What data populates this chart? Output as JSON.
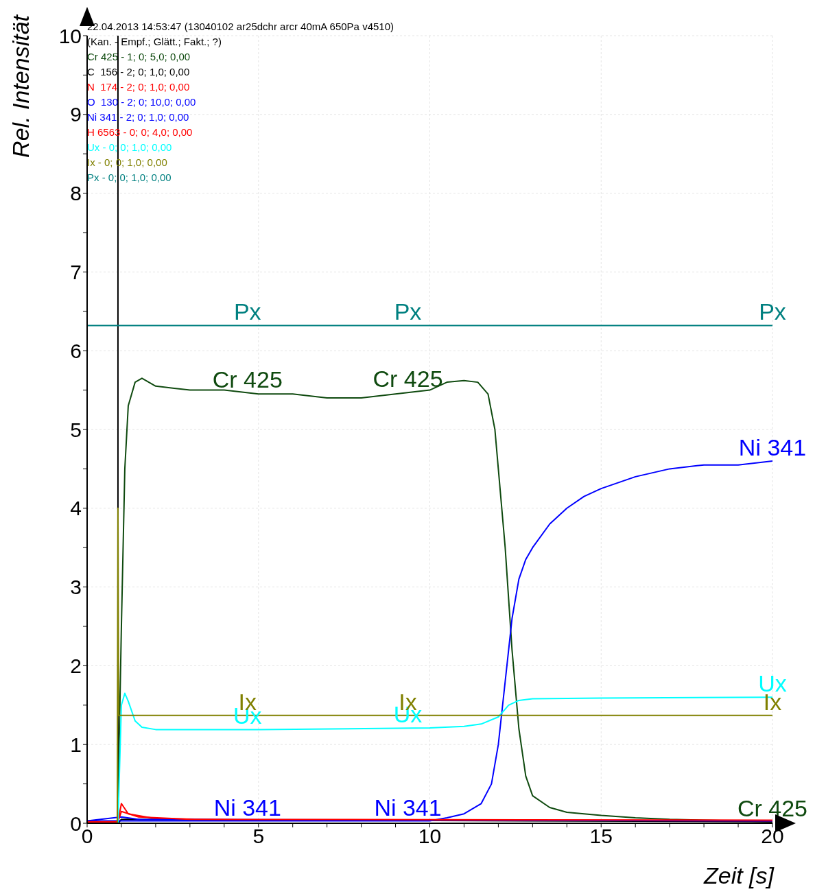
{
  "chart_data": {
    "type": "line",
    "title": "22.04.2013 14:53:47 (13040102 ar25dchr arcr 40mA 650Pa v4510)",
    "subtitle": "(Kan. - Empf.; Glätt.; Fakt.; ?)",
    "xlabel": "Zeit [s]",
    "ylabel": "Rel. Intensität",
    "annotations": [
      "Cr 425 - 1; 0; 5,0; 0,00",
      "C  156 - 2; 0; 1,0; 0,00",
      "N  174 - 2; 0; 1,0; 0,00",
      "O  130 - 2; 0; 10,0; 0,00",
      "Ni 341 - 2; 0; 1,0; 0,00",
      "H 6563 - 0; 0; 4,0; 0,00",
      "Ux - 0; 0; 1,0; 0,00",
      "Ix - 0; 0; 1,0; 0,00",
      "Px - 0; 0; 1,0; 0,00"
    ],
    "xlim": [
      0,
      20
    ],
    "ylim": [
      0,
      10
    ],
    "xticks": [
      0,
      {
        "value": 1,
        "label": null
      },
      {
        "value": 2,
        "label": null
      },
      {
        "value": 3,
        "label": null
      },
      {
        "value": 4,
        "label": null
      },
      5,
      {
        "value": 6,
        "label": null
      },
      {
        "value": 7,
        "label": null
      },
      {
        "value": 8,
        "label": null
      },
      {
        "value": 9,
        "label": null
      },
      10,
      {
        "value": 11,
        "label": null
      },
      {
        "value": 12,
        "label": null
      },
      {
        "value": 13,
        "label": null
      },
      {
        "value": 14,
        "label": null
      },
      15,
      {
        "value": 16,
        "label": null
      },
      {
        "value": 17,
        "label": null
      },
      {
        "value": 18,
        "label": null
      },
      {
        "value": 19,
        "label": null
      },
      20
    ],
    "yticks": [
      0,
      {
        "value": 0.5,
        "label": null
      },
      1,
      {
        "value": 1.5,
        "label": null
      },
      2,
      {
        "value": 2.5,
        "label": null
      },
      3,
      {
        "value": 3.5,
        "label": null
      },
      4,
      {
        "value": 4.5,
        "label": null
      },
      5,
      {
        "value": 5.5,
        "label": null
      },
      6,
      {
        "value": 6.5,
        "label": null
      },
      7,
      {
        "value": 7.5,
        "label": null
      },
      8,
      {
        "value": 8.5,
        "label": null
      },
      9,
      {
        "value": 9.5,
        "label": null
      },
      10
    ],
    "grid": true,
    "legend": false,
    "marker": "none",
    "line_style": "solid",
    "ref_lines": [
      {
        "axis": "x",
        "value": 0.9,
        "label": null,
        "color": "#000000"
      }
    ],
    "series": [
      {
        "name": "Cr 425",
        "color": "#0f4a0f",
        "x": [
          0,
          0.88,
          0.9,
          1.0,
          1.1,
          1.2,
          1.4,
          1.6,
          2,
          3,
          4,
          5,
          6,
          7,
          8,
          9,
          10,
          10.5,
          11,
          11.4,
          11.7,
          11.9,
          12.0,
          12.2,
          12.4,
          12.6,
          12.8,
          13.0,
          13.5,
          14,
          15,
          16,
          17,
          18,
          19,
          20
        ],
        "values": [
          0,
          0,
          0.2,
          2.5,
          4.5,
          5.3,
          5.6,
          5.65,
          5.55,
          5.5,
          5.5,
          5.45,
          5.45,
          5.4,
          5.4,
          5.45,
          5.5,
          5.6,
          5.62,
          5.6,
          5.45,
          5.0,
          4.5,
          3.5,
          2.2,
          1.2,
          0.6,
          0.35,
          0.2,
          0.14,
          0.1,
          0.07,
          0.05,
          0.04,
          0.03,
          0.02
        ]
      },
      {
        "color": "#000000",
        "x": [
          0,
          0.9,
          1.0,
          20
        ],
        "values": [
          0,
          0,
          0.05,
          0.02
        ]
      },
      {
        "color": "#ff0000",
        "x": [
          0,
          0.9,
          1.0,
          1.2,
          2,
          5,
          10,
          20
        ],
        "values": [
          0.02,
          0.02,
          0.25,
          0.12,
          0.06,
          0.04,
          0.04,
          0.03
        ]
      },
      {
        "color": "#0000ff",
        "x": [
          0,
          1,
          1.5,
          20
        ],
        "values": [
          0.03,
          0.08,
          0.05,
          0.03
        ]
      },
      {
        "name": "Ni 341",
        "color": "#0000ff",
        "x": [
          0,
          10,
          10.5,
          11,
          11.5,
          11.8,
          12.0,
          12.2,
          12.4,
          12.6,
          12.8,
          13,
          13.5,
          14,
          14.5,
          15,
          16,
          17,
          18,
          19,
          20
        ],
        "values": [
          0.03,
          0.03,
          0.07,
          0.12,
          0.25,
          0.5,
          1.0,
          1.8,
          2.6,
          3.1,
          3.35,
          3.5,
          3.8,
          4.0,
          4.15,
          4.25,
          4.4,
          4.5,
          4.55,
          4.55,
          4.6
        ]
      },
      {
        "color": "#ff0000",
        "x": [
          0,
          0.9,
          1.0,
          1.5,
          3,
          20
        ],
        "values": [
          0.02,
          0.02,
          0.15,
          0.08,
          0.05,
          0.04
        ]
      },
      {
        "name": "Ux",
        "color": "#00ffff",
        "x": [
          0,
          0.9,
          1.0,
          1.1,
          1.2,
          1.4,
          1.6,
          2,
          5,
          10,
          11,
          11.5,
          12,
          12.3,
          12.6,
          13,
          15,
          20
        ],
        "values": [
          0,
          0,
          1.5,
          1.65,
          1.55,
          1.3,
          1.22,
          1.19,
          1.19,
          1.21,
          1.23,
          1.26,
          1.35,
          1.5,
          1.56,
          1.58,
          1.59,
          1.6
        ]
      },
      {
        "name": "Ix",
        "color": "#808000",
        "x": [
          0,
          0.88,
          0.9,
          0.92,
          20
        ],
        "values": [
          0,
          0,
          4.0,
          1.37,
          1.37
        ]
      },
      {
        "name": "Px",
        "color": "#008080",
        "x": [
          0,
          20
        ],
        "values": [
          6.32,
          6.32
        ]
      }
    ]
  }
}
